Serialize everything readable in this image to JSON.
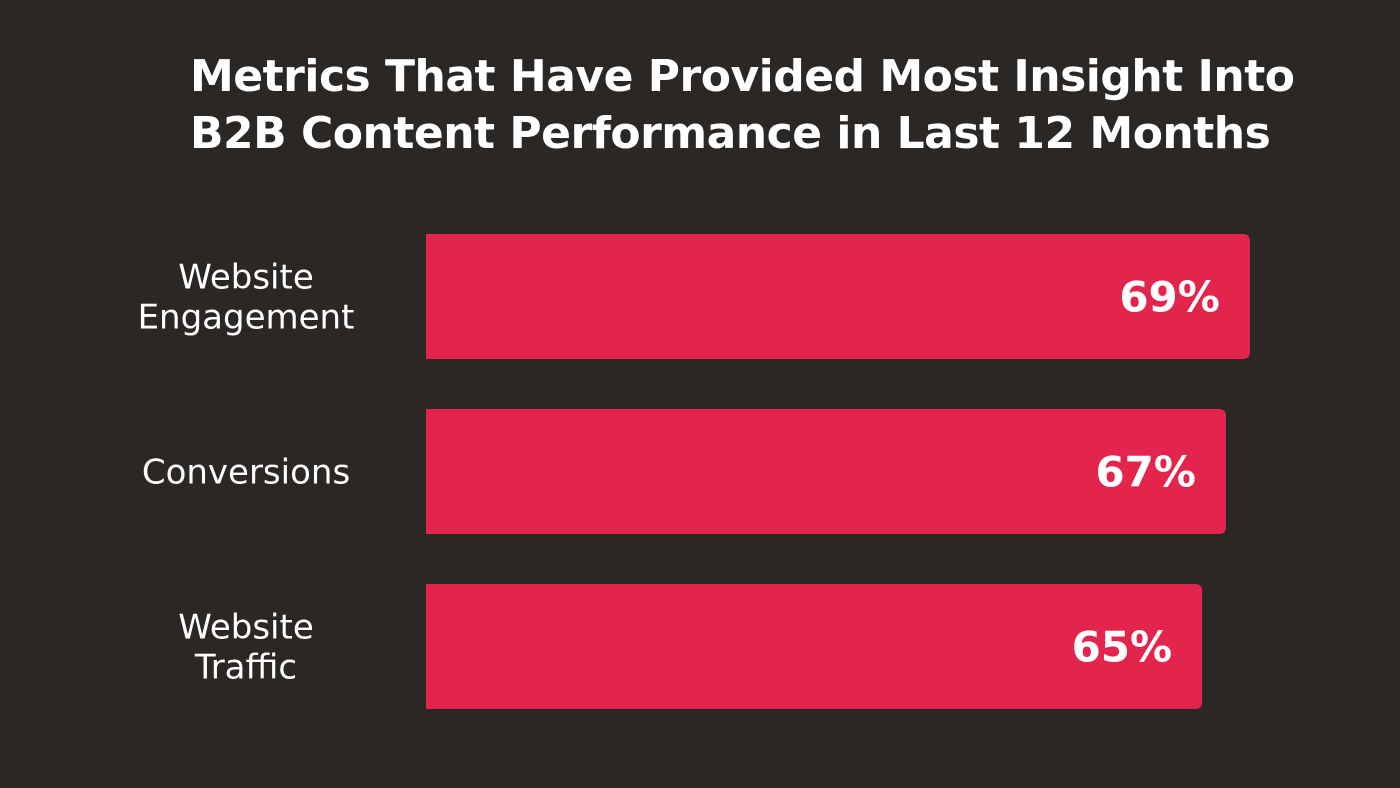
{
  "colors": {
    "background": "#2b2725",
    "bar": "#e3244d",
    "text": "#ffffff"
  },
  "chart_data": {
    "type": "bar",
    "orientation": "horizontal",
    "title_lines": [
      "Metrics That Have Provided Most Insight Into",
      "B2B Content Performance in Last 12 Months"
    ],
    "categories": [
      [
        "Website",
        "Engagement"
      ],
      [
        "Conversions"
      ],
      [
        "Website",
        "Traffic"
      ]
    ],
    "values": [
      69,
      67,
      65
    ],
    "value_labels": [
      "69%",
      "67%",
      "65%"
    ],
    "unit": "%",
    "grid": false,
    "legend": false
  }
}
